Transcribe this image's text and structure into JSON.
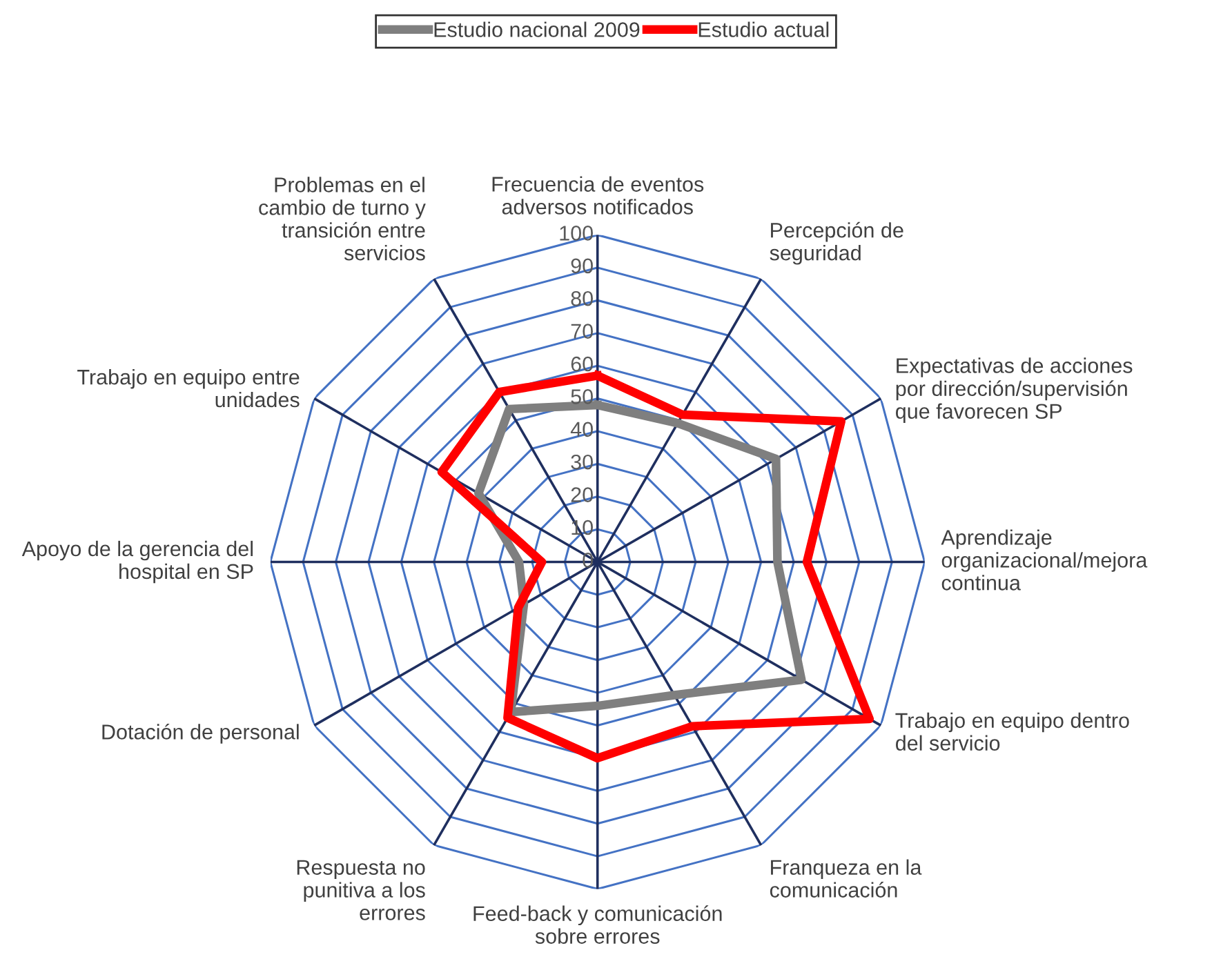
{
  "chart_data": {
    "type": "radar",
    "categories": [
      "Frecuencia de eventos adversos notificados",
      "Percepción de seguridad",
      "Expectativas de acciones por dirección/supervisión que favorecen SP",
      "Aprendizaje organizacional/mejora continua",
      "Trabajo en equipo dentro del servicio",
      "Franqueza en la comunicación",
      "Feed-back y comunicación sobre errores",
      "Respuesta no punitiva a los errores",
      "Dotación de personal",
      "Apoyo de la gerencia del hospital en SP",
      "Trabajo en equipo entre unidades",
      "Problemas en el cambio de turno y transición entre servicios"
    ],
    "series": [
      {
        "name": "Estudio nacional 2009",
        "color": "#7f7f7f",
        "values": [
          48,
          49,
          63,
          55,
          72,
          47,
          44,
          53,
          26,
          24,
          42,
          54
        ]
      },
      {
        "name": "Estudio actual",
        "color": "#ff0000",
        "values": [
          57,
          52,
          86,
          64,
          96,
          58,
          60,
          55,
          28,
          17,
          55,
          60
        ]
      }
    ],
    "ylim": [
      0,
      100
    ],
    "yticks": [
      0,
      10,
      20,
      30,
      40,
      50,
      60,
      70,
      80,
      90,
      100
    ],
    "grid": true,
    "legend": "top",
    "marker": "none",
    "line_style": "solid"
  }
}
